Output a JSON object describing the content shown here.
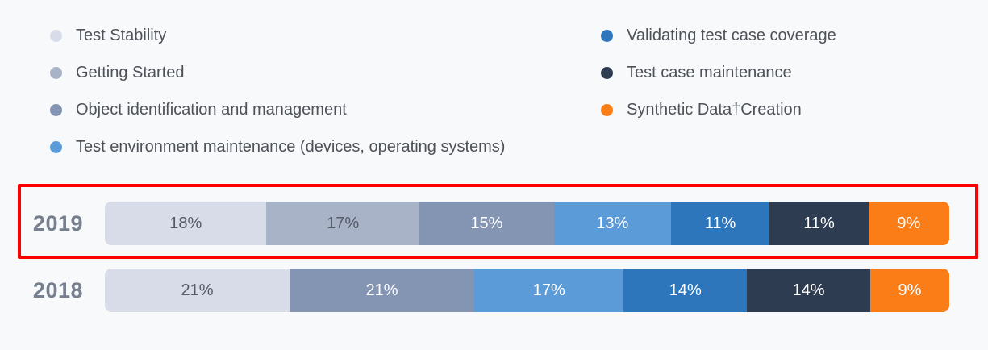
{
  "background": "#f8f9fb",
  "styles": {
    "year_label_color": "#76808f",
    "legend_text_color": "#4d5158",
    "annotation_color": "#ff0000"
  },
  "legend": {
    "columns": [
      [
        0,
        1,
        2,
        3
      ],
      [
        4,
        5,
        6
      ]
    ]
  },
  "annotation": {
    "shape": "rectangle",
    "color": "#ff0000",
    "highlighted_category": "2019"
  },
  "chart_data": {
    "type": "bar",
    "variant": "horizontal-stacked",
    "value_suffix": "%",
    "grid": false,
    "legend_position": "top",
    "categories": [
      "2019",
      "2018"
    ],
    "series": [
      {
        "name": "Test Stability",
        "color": "#d8dce8",
        "text_color": "#555b66",
        "values": [
          18,
          21
        ]
      },
      {
        "name": "Getting Started",
        "color": "#a9b3c7",
        "text_color": "#555b66",
        "values": [
          17,
          null
        ]
      },
      {
        "name": "Object identification and management",
        "color": "#8494b3",
        "text_color": "#ffffff",
        "values": [
          15,
          21
        ]
      },
      {
        "name": "Test environment maintenance (devices, operating systems)",
        "color": "#5b9bd8",
        "text_color": "#ffffff",
        "values": [
          13,
          17
        ]
      },
      {
        "name": "Validating test case coverage",
        "color": "#2e76bb",
        "text_color": "#ffffff",
        "values": [
          11,
          14
        ]
      },
      {
        "name": "Test case maintenance",
        "color": "#2d3c50",
        "text_color": "#ffffff",
        "values": [
          11,
          14
        ]
      },
      {
        "name": "Synthetic Data†Creation",
        "color": "#fb7d17",
        "text_color": "#ffffff",
        "values": [
          9,
          9
        ]
      }
    ]
  }
}
